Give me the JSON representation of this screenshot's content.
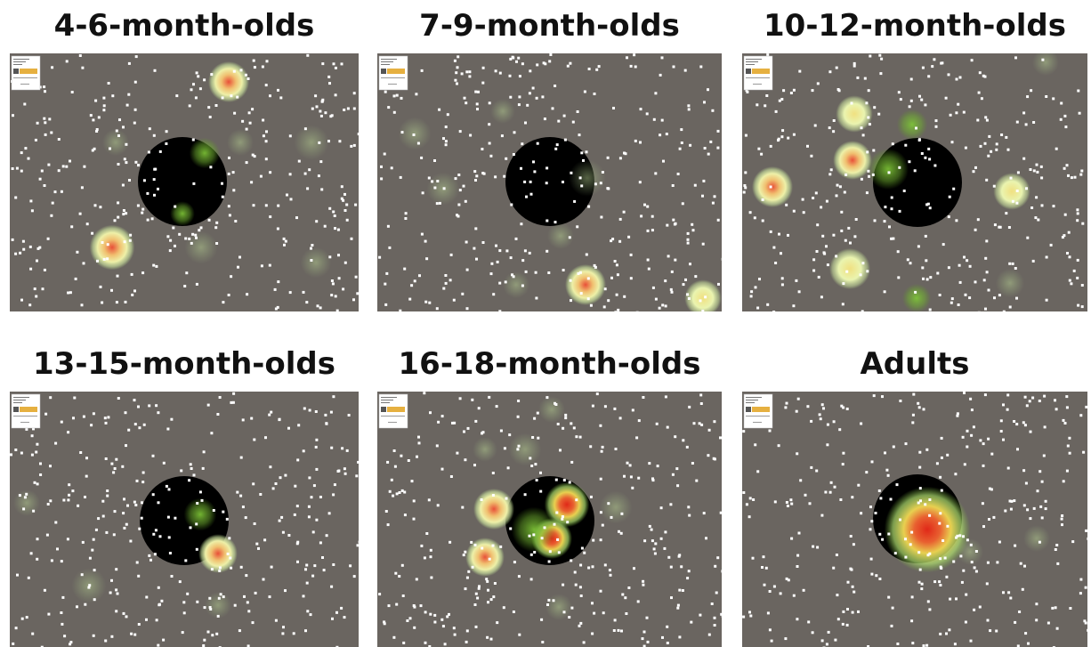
{
  "panels": [
    {
      "title": "4-6-month-olds"
    },
    {
      "title": "7-9-month-olds"
    },
    {
      "title": "10-12-month-olds"
    },
    {
      "title": "13-15-month-olds"
    },
    {
      "title": "16-18-month-olds"
    },
    {
      "title": "Adults"
    }
  ]
}
